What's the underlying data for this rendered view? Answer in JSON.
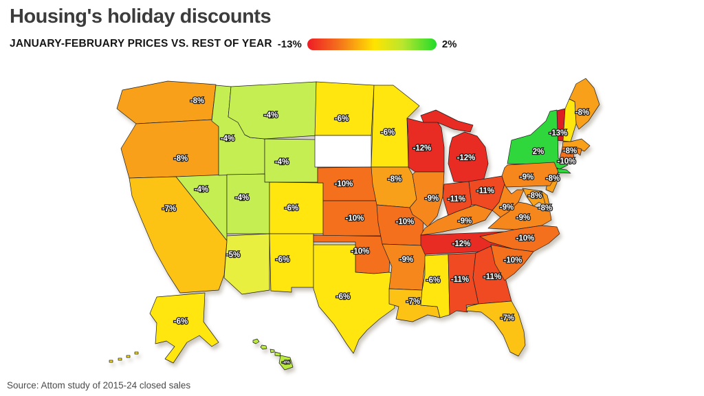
{
  "header": {
    "title": "Housing's holiday discounts",
    "subtitle": "JANUARY-FEBRUARY PRICES VS. REST OF YEAR",
    "legend": {
      "min_label": "-13%",
      "max_label": "2%",
      "gradient_colors": [
        "#ee1c25",
        "#f4701c",
        "#ffe400",
        "#22db2a"
      ]
    }
  },
  "footer": {
    "source": "Source: Attom study of 2015-24 closed sales"
  },
  "chart_data": {
    "type": "heatmap",
    "subtype": "us-choropleth-map",
    "title": "Housing's holiday discounts",
    "subtitle": "JANUARY-FEBRUARY PRICES VS. REST OF YEAR",
    "unit": "percent",
    "value_range": [
      -13,
      2
    ],
    "legend_position": "top",
    "color_scale": {
      "-13": "#dc1e24",
      "-12": "#e92c23",
      "-11": "#ef4a22",
      "-10": "#f4701c",
      "-9": "#f6871d",
      "-8": "#f9a01a",
      "-7": "#fcc214",
      "-6": "#ffe60f",
      "-5": "#e9ef3e",
      "-4": "#c4ee51",
      "2": "#2fd73c",
      "no_data": "#ffffff"
    },
    "states": [
      {
        "abbr": "WA",
        "value": -8,
        "label": "-8%",
        "fill": "#f9a01a"
      },
      {
        "abbr": "OR",
        "value": -8,
        "label": "-8%",
        "fill": "#f9a01a"
      },
      {
        "abbr": "CA",
        "value": -7,
        "label": "-7%",
        "fill": "#fcc214"
      },
      {
        "abbr": "NV",
        "value": -4,
        "label": "-4%",
        "fill": "#c4ee51"
      },
      {
        "abbr": "ID",
        "value": -4,
        "label": "-4%",
        "fill": "#c4ee51"
      },
      {
        "abbr": "MT",
        "value": -4,
        "label": "-4%",
        "fill": "#c4ee51"
      },
      {
        "abbr": "WY",
        "value": -4,
        "label": "-4%",
        "fill": "#c4ee51"
      },
      {
        "abbr": "UT",
        "value": -4,
        "label": "-4%",
        "fill": "#c4ee51"
      },
      {
        "abbr": "AZ",
        "value": -5,
        "label": "-5%",
        "fill": "#e9ef3e"
      },
      {
        "abbr": "CO",
        "value": -6,
        "label": "-6%",
        "fill": "#ffe60f"
      },
      {
        "abbr": "NM",
        "value": -6,
        "label": "-6%",
        "fill": "#ffe60f"
      },
      {
        "abbr": "ND",
        "value": -6,
        "label": "-6%",
        "fill": "#ffe60f"
      },
      {
        "abbr": "SD",
        "value": null,
        "label": "",
        "fill": "#ffffff"
      },
      {
        "abbr": "NE",
        "value": -10,
        "label": "-10%",
        "fill": "#f4701c"
      },
      {
        "abbr": "KS",
        "value": -10,
        "label": "-10%",
        "fill": "#f4701c"
      },
      {
        "abbr": "OK",
        "value": -10,
        "label": "-10%",
        "fill": "#f4701c"
      },
      {
        "abbr": "TX",
        "value": -6,
        "label": "-6%",
        "fill": "#ffe60f"
      },
      {
        "abbr": "MN",
        "value": -6,
        "label": "-6%",
        "fill": "#ffe60f"
      },
      {
        "abbr": "IA",
        "value": -8,
        "label": "-8%",
        "fill": "#f9a01a"
      },
      {
        "abbr": "MO",
        "value": -10,
        "label": "-10%",
        "fill": "#f4701c"
      },
      {
        "abbr": "AR",
        "value": -9,
        "label": "-9%",
        "fill": "#f6871d"
      },
      {
        "abbr": "LA",
        "value": -7,
        "label": "-7%",
        "fill": "#fcc214"
      },
      {
        "abbr": "WI",
        "value": -12,
        "label": "-12%",
        "fill": "#e92c23"
      },
      {
        "abbr": "MI",
        "value": -12,
        "label": "-12%",
        "fill": "#e92c23"
      },
      {
        "abbr": "IL",
        "value": -9,
        "label": "-9%",
        "fill": "#f6871d"
      },
      {
        "abbr": "IN",
        "value": -11,
        "label": "-11%",
        "fill": "#ef4a22"
      },
      {
        "abbr": "OH",
        "value": -11,
        "label": "-11%",
        "fill": "#ef4a22"
      },
      {
        "abbr": "KY",
        "value": -9,
        "label": "-9%",
        "fill": "#f6871d"
      },
      {
        "abbr": "TN",
        "value": -12,
        "label": "-12%",
        "fill": "#e92c23"
      },
      {
        "abbr": "MS",
        "value": -6,
        "label": "-6%",
        "fill": "#ffe60f"
      },
      {
        "abbr": "AL",
        "value": -11,
        "label": "-11%",
        "fill": "#ef4a22"
      },
      {
        "abbr": "GA",
        "value": -11,
        "label": "-11%",
        "fill": "#ef4a22"
      },
      {
        "abbr": "FL",
        "value": -7,
        "label": "-7%",
        "fill": "#fcc214"
      },
      {
        "abbr": "ME",
        "value": -8,
        "label": "-8%",
        "fill": "#f9a01a"
      },
      {
        "abbr": "VT",
        "value": -13,
        "label": "-13%",
        "fill": "#dc1e24"
      },
      {
        "abbr": "NH",
        "value": null,
        "label": "",
        "fill": "#ffe60f"
      },
      {
        "abbr": "NY",
        "value": 2,
        "label": "2%",
        "fill": "#2fd73c"
      },
      {
        "abbr": "MA",
        "value": -8,
        "label": "-8%",
        "fill": "#f9a01a"
      },
      {
        "abbr": "RI",
        "value": null,
        "label": "",
        "fill": "#f6871d"
      },
      {
        "abbr": "CT",
        "value": -10,
        "label": "-10%",
        "fill": "#f4701c"
      },
      {
        "abbr": "NJ",
        "value": -8,
        "label": "-8%",
        "fill": "#f9a01a"
      },
      {
        "abbr": "PA",
        "value": -9,
        "label": "-9%",
        "fill": "#f6871d"
      },
      {
        "abbr": "DE",
        "value": -8,
        "label": "-8%",
        "fill": "#f9a01a"
      },
      {
        "abbr": "MD",
        "value": -8,
        "label": "-8%",
        "fill": "#f9a01a"
      },
      {
        "abbr": "WV",
        "value": -9,
        "label": "-9%",
        "fill": "#f6871d"
      },
      {
        "abbr": "VA",
        "value": -9,
        "label": "-9%",
        "fill": "#f6871d"
      },
      {
        "abbr": "NC",
        "value": -10,
        "label": "-10%",
        "fill": "#f4701c"
      },
      {
        "abbr": "SC",
        "value": -10,
        "label": "-10%",
        "fill": "#f4701c"
      },
      {
        "abbr": "AK",
        "value": -6,
        "label": "-6%",
        "fill": "#ffe60f"
      },
      {
        "abbr": "HI",
        "value": -4,
        "label": "-4%",
        "fill": "#b9e93f"
      }
    ]
  }
}
